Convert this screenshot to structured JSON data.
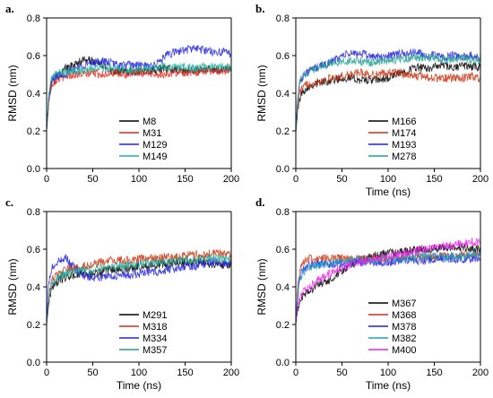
{
  "chart_data": [
    {
      "type": "line",
      "panel_letter": "a.",
      "xlabel": "",
      "ylabel": "RMSD (nm)",
      "xlim": [
        0,
        200
      ],
      "ylim": [
        0.0,
        0.8
      ],
      "xticks": [
        "0",
        "50",
        "100",
        "150",
        "200"
      ],
      "yticks": [
        "0.0",
        "0.2",
        "0.4",
        "0.6",
        "0.8"
      ],
      "grid": false,
      "legend_position": "center-right",
      "series": [
        {
          "name": "M8",
          "color": "#000000",
          "x": [
            0,
            2,
            4,
            6,
            10,
            15,
            20,
            30,
            40,
            50,
            60,
            70,
            80,
            90,
            100,
            110,
            120,
            130,
            140,
            150,
            160,
            170,
            180,
            190,
            200
          ],
          "y": [
            0.2,
            0.33,
            0.42,
            0.46,
            0.48,
            0.5,
            0.53,
            0.55,
            0.58,
            0.57,
            0.55,
            0.52,
            0.52,
            0.51,
            0.52,
            0.52,
            0.53,
            0.53,
            0.52,
            0.52,
            0.52,
            0.53,
            0.52,
            0.53,
            0.53
          ]
        },
        {
          "name": "M31",
          "color": "#e0281b",
          "x": [
            0,
            2,
            4,
            6,
            10,
            15,
            20,
            30,
            40,
            50,
            60,
            70,
            80,
            90,
            100,
            110,
            120,
            130,
            140,
            150,
            160,
            170,
            180,
            190,
            200
          ],
          "y": [
            0.2,
            0.34,
            0.42,
            0.45,
            0.47,
            0.48,
            0.49,
            0.5,
            0.5,
            0.51,
            0.5,
            0.51,
            0.5,
            0.5,
            0.51,
            0.51,
            0.5,
            0.5,
            0.51,
            0.51,
            0.51,
            0.52,
            0.52,
            0.52,
            0.52
          ]
        },
        {
          "name": "M129",
          "color": "#2222dd",
          "x": [
            0,
            2,
            4,
            6,
            10,
            15,
            20,
            30,
            40,
            50,
            60,
            70,
            80,
            90,
            100,
            110,
            120,
            130,
            140,
            150,
            160,
            170,
            180,
            190,
            200
          ],
          "y": [
            0.2,
            0.36,
            0.43,
            0.47,
            0.49,
            0.5,
            0.5,
            0.53,
            0.55,
            0.56,
            0.57,
            0.56,
            0.55,
            0.55,
            0.55,
            0.54,
            0.56,
            0.6,
            0.62,
            0.63,
            0.64,
            0.63,
            0.62,
            0.62,
            0.61
          ]
        },
        {
          "name": "M149",
          "color": "#20b0a0",
          "x": [
            0,
            2,
            4,
            6,
            10,
            15,
            20,
            30,
            40,
            50,
            60,
            70,
            80,
            90,
            100,
            110,
            120,
            130,
            140,
            150,
            160,
            170,
            180,
            190,
            200
          ],
          "y": [
            0.2,
            0.37,
            0.45,
            0.49,
            0.5,
            0.51,
            0.51,
            0.52,
            0.52,
            0.53,
            0.54,
            0.53,
            0.53,
            0.52,
            0.53,
            0.53,
            0.54,
            0.54,
            0.54,
            0.54,
            0.53,
            0.54,
            0.54,
            0.54,
            0.54
          ]
        }
      ]
    },
    {
      "type": "line",
      "panel_letter": "b.",
      "xlabel": "Time (ns)",
      "ylabel": "RMSD (nm)",
      "xlim": [
        0,
        200
      ],
      "ylim": [
        0.0,
        0.8
      ],
      "xticks": [
        "0",
        "50",
        "100",
        "150",
        "200"
      ],
      "yticks": [
        "0.0",
        "0.2",
        "0.4",
        "0.6",
        "0.8"
      ],
      "grid": false,
      "legend_position": "center-right",
      "series": [
        {
          "name": "M166",
          "color": "#000000",
          "x": [
            0,
            2,
            4,
            6,
            10,
            15,
            20,
            30,
            40,
            50,
            60,
            70,
            80,
            90,
            100,
            110,
            120,
            130,
            140,
            150,
            160,
            170,
            180,
            190,
            200
          ],
          "y": [
            0.2,
            0.3,
            0.36,
            0.4,
            0.42,
            0.44,
            0.45,
            0.46,
            0.47,
            0.48,
            0.48,
            0.47,
            0.47,
            0.47,
            0.48,
            0.5,
            0.52,
            0.54,
            0.53,
            0.54,
            0.55,
            0.53,
            0.55,
            0.54,
            0.54
          ]
        },
        {
          "name": "M174",
          "color": "#cc3311",
          "x": [
            0,
            2,
            4,
            6,
            10,
            15,
            20,
            30,
            40,
            50,
            60,
            70,
            80,
            90,
            100,
            110,
            120,
            130,
            140,
            150,
            160,
            170,
            180,
            190,
            200
          ],
          "y": [
            0.2,
            0.33,
            0.4,
            0.42,
            0.44,
            0.45,
            0.46,
            0.47,
            0.48,
            0.49,
            0.5,
            0.51,
            0.5,
            0.5,
            0.51,
            0.51,
            0.5,
            0.49,
            0.49,
            0.48,
            0.48,
            0.48,
            0.48,
            0.49,
            0.48
          ]
        },
        {
          "name": "M193",
          "color": "#2222dd",
          "x": [
            0,
            2,
            4,
            6,
            10,
            15,
            20,
            30,
            40,
            50,
            60,
            70,
            80,
            90,
            100,
            110,
            120,
            130,
            140,
            150,
            160,
            170,
            180,
            190,
            200
          ],
          "y": [
            0.2,
            0.38,
            0.45,
            0.48,
            0.5,
            0.52,
            0.53,
            0.55,
            0.57,
            0.6,
            0.61,
            0.61,
            0.6,
            0.59,
            0.6,
            0.61,
            0.61,
            0.62,
            0.6,
            0.6,
            0.59,
            0.6,
            0.59,
            0.6,
            0.59
          ]
        },
        {
          "name": "M278",
          "color": "#20a090",
          "x": [
            0,
            2,
            4,
            6,
            10,
            15,
            20,
            30,
            40,
            50,
            60,
            70,
            80,
            90,
            100,
            110,
            120,
            130,
            140,
            150,
            160,
            170,
            180,
            190,
            200
          ],
          "y": [
            0.2,
            0.36,
            0.44,
            0.48,
            0.5,
            0.52,
            0.53,
            0.55,
            0.56,
            0.57,
            0.57,
            0.57,
            0.56,
            0.57,
            0.57,
            0.58,
            0.58,
            0.59,
            0.59,
            0.59,
            0.58,
            0.58,
            0.59,
            0.58,
            0.58
          ]
        }
      ]
    },
    {
      "type": "line",
      "panel_letter": "c.",
      "xlabel": "Time (ns)",
      "ylabel": "RMSD (nm)",
      "xlim": [
        0,
        200
      ],
      "ylim": [
        0.0,
        0.8
      ],
      "xticks": [
        "0",
        "50",
        "100",
        "150",
        "200"
      ],
      "yticks": [
        "0.0",
        "0.2",
        "0.4",
        "0.6",
        "0.8"
      ],
      "grid": false,
      "legend_position": "center-right",
      "series": [
        {
          "name": "M291",
          "color": "#000000",
          "x": [
            0,
            2,
            4,
            6,
            10,
            15,
            20,
            30,
            40,
            50,
            60,
            70,
            80,
            90,
            100,
            110,
            120,
            130,
            140,
            150,
            160,
            170,
            180,
            190,
            200
          ],
          "y": [
            0.2,
            0.3,
            0.36,
            0.4,
            0.42,
            0.44,
            0.45,
            0.46,
            0.47,
            0.47,
            0.48,
            0.49,
            0.49,
            0.5,
            0.51,
            0.51,
            0.52,
            0.52,
            0.53,
            0.53,
            0.53,
            0.53,
            0.52,
            0.52,
            0.52
          ]
        },
        {
          "name": "M318",
          "color": "#cc3311",
          "x": [
            0,
            2,
            4,
            6,
            10,
            15,
            20,
            30,
            40,
            50,
            60,
            70,
            80,
            90,
            100,
            110,
            120,
            130,
            140,
            150,
            160,
            170,
            180,
            190,
            200
          ],
          "y": [
            0.2,
            0.33,
            0.4,
            0.44,
            0.46,
            0.47,
            0.49,
            0.5,
            0.51,
            0.52,
            0.53,
            0.54,
            0.54,
            0.54,
            0.55,
            0.55,
            0.55,
            0.56,
            0.56,
            0.57,
            0.57,
            0.57,
            0.58,
            0.58,
            0.57
          ]
        },
        {
          "name": "M334",
          "color": "#2222dd",
          "x": [
            0,
            2,
            4,
            6,
            10,
            15,
            20,
            30,
            40,
            50,
            60,
            70,
            80,
            90,
            100,
            110,
            120,
            130,
            140,
            150,
            160,
            170,
            180,
            190,
            200
          ],
          "y": [
            0.2,
            0.4,
            0.47,
            0.5,
            0.52,
            0.54,
            0.56,
            0.5,
            0.46,
            0.45,
            0.45,
            0.46,
            0.46,
            0.46,
            0.47,
            0.48,
            0.48,
            0.49,
            0.5,
            0.51,
            0.51,
            0.52,
            0.53,
            0.53,
            0.53
          ]
        },
        {
          "name": "M357",
          "color": "#20a090",
          "x": [
            0,
            2,
            4,
            6,
            10,
            15,
            20,
            30,
            40,
            50,
            60,
            70,
            80,
            90,
            100,
            110,
            120,
            130,
            140,
            150,
            160,
            170,
            180,
            190,
            200
          ],
          "y": [
            0.2,
            0.32,
            0.38,
            0.42,
            0.44,
            0.46,
            0.47,
            0.48,
            0.49,
            0.49,
            0.5,
            0.51,
            0.51,
            0.52,
            0.52,
            0.53,
            0.53,
            0.53,
            0.54,
            0.54,
            0.54,
            0.55,
            0.55,
            0.55,
            0.55
          ]
        }
      ]
    },
    {
      "type": "line",
      "panel_letter": "d.",
      "xlabel": "Time (ns)",
      "ylabel": "RMSD (nm)",
      "xlim": [
        0,
        200
      ],
      "ylim": [
        0.0,
        0.8
      ],
      "xticks": [
        "0",
        "50",
        "100",
        "150",
        "200"
      ],
      "yticks": [
        "0.0",
        "0.2",
        "0.4",
        "0.6",
        "0.8"
      ],
      "grid": false,
      "legend_position": "center-right",
      "series": [
        {
          "name": "M367",
          "color": "#000000",
          "x": [
            0,
            2,
            4,
            6,
            10,
            15,
            20,
            30,
            40,
            50,
            60,
            70,
            80,
            90,
            100,
            110,
            120,
            130,
            140,
            150,
            160,
            170,
            180,
            190,
            200
          ],
          "y": [
            0.2,
            0.28,
            0.32,
            0.34,
            0.36,
            0.38,
            0.4,
            0.42,
            0.44,
            0.48,
            0.52,
            0.54,
            0.56,
            0.57,
            0.58,
            0.58,
            0.59,
            0.6,
            0.6,
            0.6,
            0.61,
            0.61,
            0.61,
            0.6,
            0.6
          ]
        },
        {
          "name": "M368",
          "color": "#cc3311",
          "x": [
            0,
            2,
            4,
            6,
            10,
            15,
            20,
            30,
            40,
            50,
            60,
            70,
            80,
            90,
            100,
            110,
            120,
            130,
            140,
            150,
            160,
            170,
            180,
            190,
            200
          ],
          "y": [
            0.2,
            0.4,
            0.48,
            0.52,
            0.54,
            0.55,
            0.55,
            0.55,
            0.55,
            0.55,
            0.55,
            0.55,
            0.55,
            0.55,
            0.55,
            0.56,
            0.56,
            0.56,
            0.56,
            0.56,
            0.56,
            0.57,
            0.57,
            0.57,
            0.57
          ]
        },
        {
          "name": "M378",
          "color": "#2222dd",
          "x": [
            0,
            2,
            4,
            6,
            10,
            15,
            20,
            30,
            40,
            50,
            60,
            70,
            80,
            90,
            100,
            110,
            120,
            130,
            140,
            150,
            160,
            170,
            180,
            190,
            200
          ],
          "y": [
            0.2,
            0.36,
            0.44,
            0.48,
            0.5,
            0.51,
            0.52,
            0.52,
            0.52,
            0.52,
            0.53,
            0.53,
            0.53,
            0.53,
            0.53,
            0.54,
            0.54,
            0.54,
            0.54,
            0.55,
            0.55,
            0.55,
            0.55,
            0.55,
            0.55
          ]
        },
        {
          "name": "M382",
          "color": "#20a0c0",
          "x": [
            0,
            2,
            4,
            6,
            10,
            15,
            20,
            30,
            40,
            50,
            60,
            70,
            80,
            90,
            100,
            110,
            120,
            130,
            140,
            150,
            160,
            170,
            180,
            190,
            200
          ],
          "y": [
            0.2,
            0.34,
            0.42,
            0.46,
            0.49,
            0.5,
            0.51,
            0.52,
            0.53,
            0.53,
            0.54,
            0.54,
            0.54,
            0.55,
            0.55,
            0.55,
            0.55,
            0.56,
            0.56,
            0.56,
            0.56,
            0.56,
            0.56,
            0.57,
            0.57
          ]
        },
        {
          "name": "M400",
          "color": "#ee22ee",
          "x": [
            0,
            2,
            4,
            6,
            10,
            15,
            20,
            30,
            40,
            50,
            60,
            70,
            80,
            90,
            100,
            110,
            120,
            130,
            140,
            150,
            160,
            170,
            180,
            190,
            200
          ],
          "y": [
            0.2,
            0.3,
            0.34,
            0.36,
            0.38,
            0.4,
            0.42,
            0.45,
            0.48,
            0.5,
            0.52,
            0.53,
            0.54,
            0.55,
            0.56,
            0.57,
            0.58,
            0.59,
            0.6,
            0.61,
            0.62,
            0.62,
            0.63,
            0.64,
            0.64
          ]
        }
      ]
    }
  ]
}
